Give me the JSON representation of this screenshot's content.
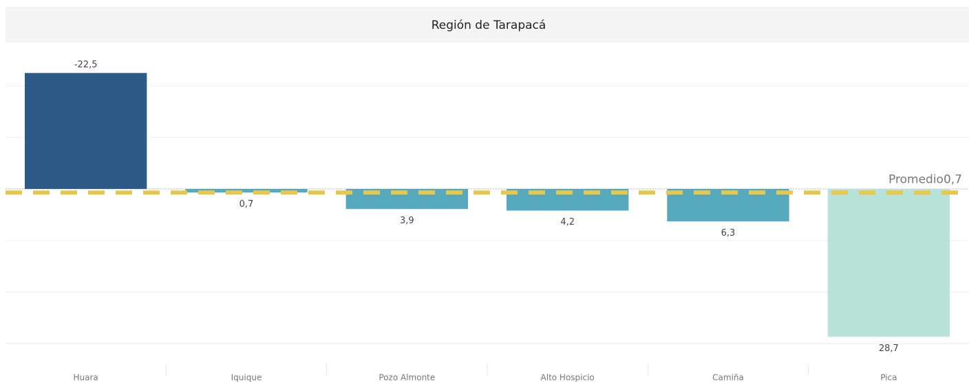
{
  "chart_data": {
    "type": "bar",
    "title": "Región de Tarapacá",
    "categories": [
      "Huara",
      "Iquique",
      "Pozo Almonte",
      "Alto Hospicio",
      "Camiña",
      "Pica"
    ],
    "values": [
      -22.5,
      0.7,
      3.9,
      4.2,
      6.3,
      28.7
    ],
    "value_labels": [
      "-22,5",
      "0,7",
      "3,9",
      "4,2",
      "6,3",
      "28,7"
    ],
    "colors": [
      "#2e5a87",
      "#56a8bd",
      "#56a8bd",
      "#56a8bd",
      "#56a8bd",
      "#b9e3d8"
    ],
    "ylim": [
      -28,
      34
    ],
    "y_reversed": true,
    "yticks": [
      -20,
      -10,
      0,
      10,
      20,
      30
    ],
    "grid": true,
    "reference_line": {
      "label": "Promedio",
      "value": 0.7,
      "value_label": "0,7",
      "color": "#e8c84a"
    }
  }
}
